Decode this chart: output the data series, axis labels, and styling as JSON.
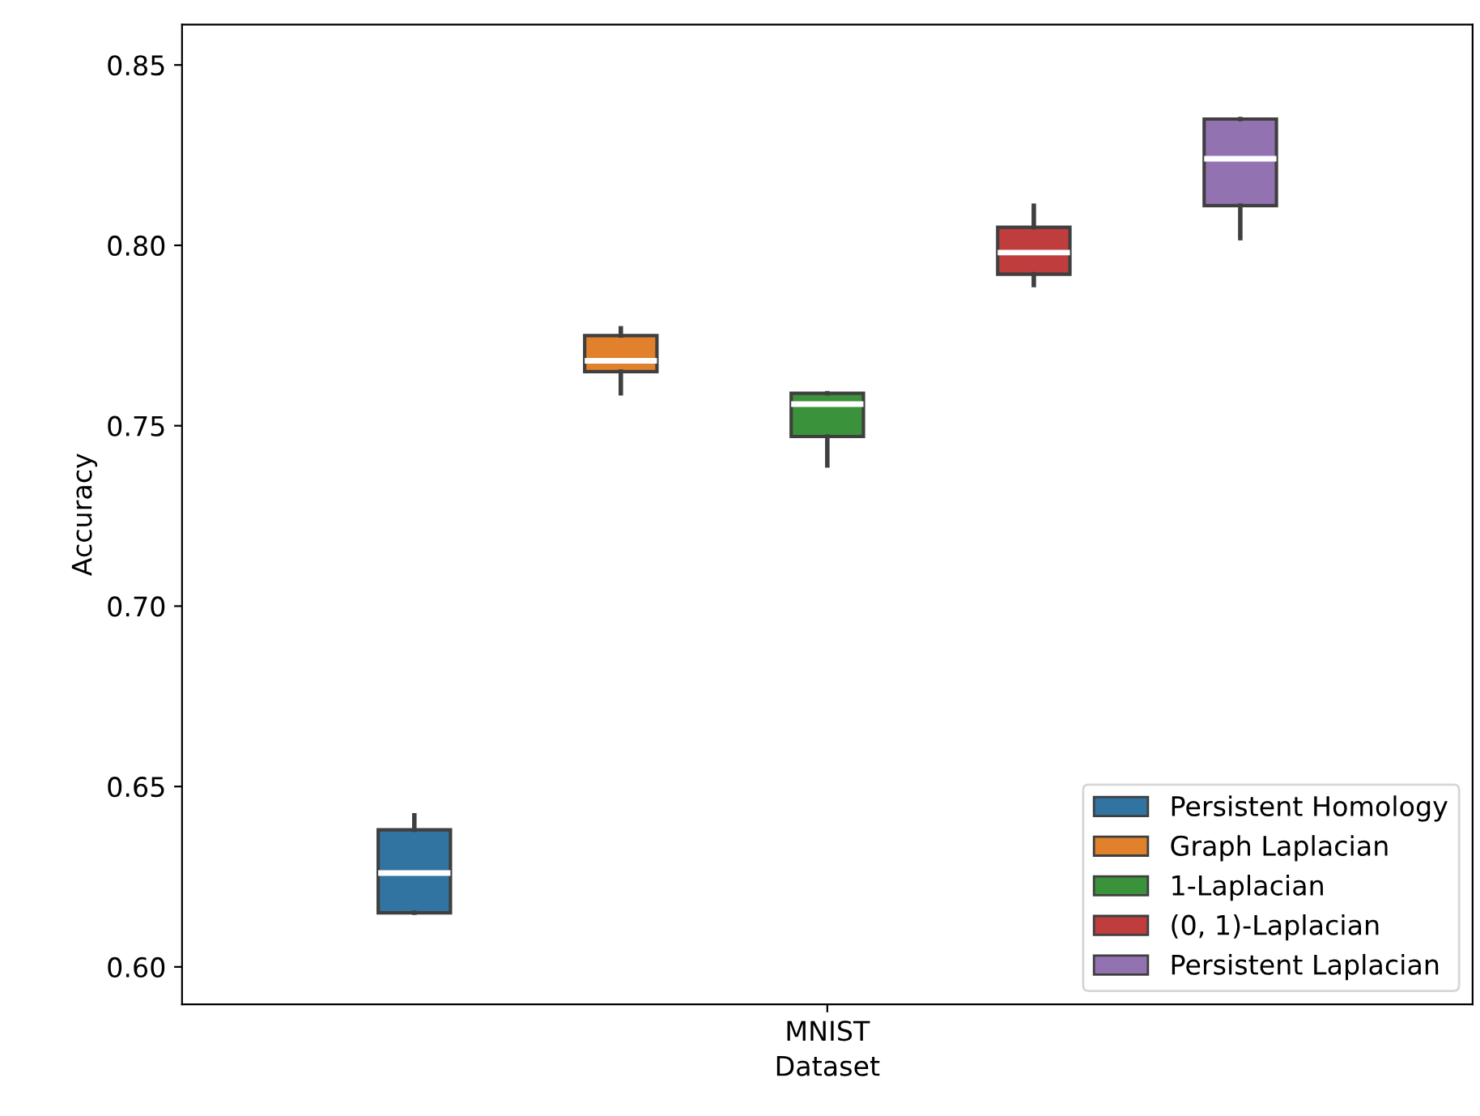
{
  "chart_data": {
    "type": "box",
    "xlabel": "Dataset",
    "ylabel": "Accuracy",
    "categories": [
      "MNIST"
    ],
    "ylim": [
      0.5896,
      0.8612
    ],
    "yticks": [
      {
        "value": 0.6,
        "label": "0.60"
      },
      {
        "value": 0.65,
        "label": "0.65"
      },
      {
        "value": 0.7,
        "label": "0.70"
      },
      {
        "value": 0.75,
        "label": "0.75"
      },
      {
        "value": 0.8,
        "label": "0.80"
      },
      {
        "value": 0.85,
        "label": "0.85"
      }
    ],
    "legend": "bottom right",
    "grid": false,
    "series": [
      {
        "name": "Persistent Homology",
        "color": "#3274a1",
        "boxes": [
          {
            "low": 0.615,
            "q1": 0.615,
            "median": 0.626,
            "q3": 0.638,
            "high": 0.642
          }
        ]
      },
      {
        "name": "Graph Laplacian",
        "color": "#e1812c",
        "boxes": [
          {
            "low": 0.759,
            "q1": 0.765,
            "median": 0.768,
            "q3": 0.775,
            "high": 0.777
          }
        ]
      },
      {
        "name": "1-Laplacian",
        "color": "#3a923a",
        "boxes": [
          {
            "low": 0.739,
            "q1": 0.747,
            "median": 0.756,
            "q3": 0.759,
            "high": 0.759
          }
        ]
      },
      {
        "name": "(0, 1)-Laplacian",
        "color": "#c03d3e",
        "boxes": [
          {
            "low": 0.789,
            "q1": 0.792,
            "median": 0.798,
            "q3": 0.805,
            "high": 0.811
          }
        ]
      },
      {
        "name": "Persistent Laplacian",
        "color": "#9372b2",
        "boxes": [
          {
            "low": 0.802,
            "q1": 0.811,
            "median": 0.824,
            "q3": 0.835,
            "high": 0.835
          }
        ]
      }
    ]
  }
}
